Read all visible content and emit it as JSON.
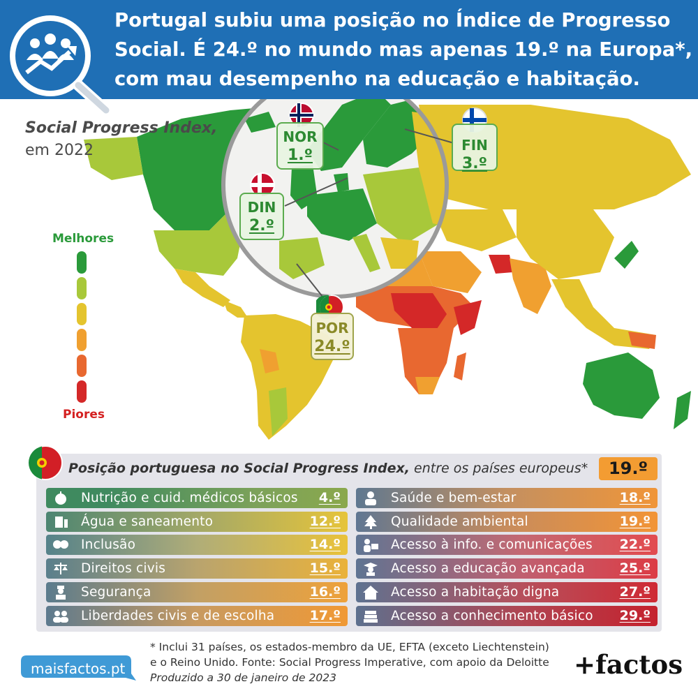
{
  "header": {
    "title": "Portugal subiu uma posição no Índice de Progresso Social. É 24.º no mundo mas apenas 19.º na Europa*, com mau desempenho na educação e habitação."
  },
  "map": {
    "subtitle_italic": "Social Progress Index,",
    "subtitle_year": "em 2022",
    "legend": {
      "best": "Melhores",
      "worst": "Piores",
      "colors": [
        "#2a9a3a",
        "#a8c83a",
        "#e4c42e",
        "#f0a030",
        "#e86830",
        "#d42828"
      ]
    },
    "callouts": [
      {
        "code": "NOR",
        "rank": "1.º"
      },
      {
        "code": "DIN",
        "rank": "2.º"
      },
      {
        "code": "FIN",
        "rank": "3.º"
      },
      {
        "code": "POR",
        "rank": "24.º"
      }
    ]
  },
  "panel": {
    "heading_italic": "Posição portuguesa no Social Progress Index,",
    "heading_rest": " entre os países europeus*",
    "overall": "19.º",
    "left": [
      {
        "label": "Nutrição e cuid. médicos básicos",
        "value": "4.º",
        "icon": "apple-icon"
      },
      {
        "label": "Água e saneamento",
        "value": "12.º",
        "icon": "water-glass-icon"
      },
      {
        "label": "Inclusão",
        "value": "14.º",
        "icon": "hands-icon"
      },
      {
        "label": "Direitos civis",
        "value": "15.º",
        "icon": "justice-scale-icon"
      },
      {
        "label": "Segurança",
        "value": "16.º",
        "icon": "police-officer-icon"
      },
      {
        "label": "Liberdades civis e de escolha",
        "value": "17.º",
        "icon": "people-icon"
      }
    ],
    "right": [
      {
        "label": "Saúde e bem-estar",
        "value": "18.º",
        "icon": "doctor-icon"
      },
      {
        "label": "Qualidade ambiental",
        "value": "19.º",
        "icon": "tree-icon"
      },
      {
        "label": "Acesso à info. e comunicações",
        "value": "22.º",
        "icon": "computer-user-icon"
      },
      {
        "label": "Acesso a educação avançada",
        "value": "25.º",
        "icon": "graduate-icon"
      },
      {
        "label": "Acesso a habitação digna",
        "value": "27.º",
        "icon": "house-icon"
      },
      {
        "label": "Acesso a conhecimento básico",
        "value": "29.º",
        "icon": "books-icon"
      }
    ]
  },
  "footer": {
    "note_line1": "* Inclui 31 países, os estados-membro da UE, EFTA (exceto Liechtenstein)",
    "note_line2": "e o Reino Unido. Fonte: Social Progress Imperative, com apoio da Deloitte",
    "note_line3": "Produzido a 30 de janeiro de 2023",
    "site": "maisfactos.pt",
    "brand": "+factos"
  }
}
